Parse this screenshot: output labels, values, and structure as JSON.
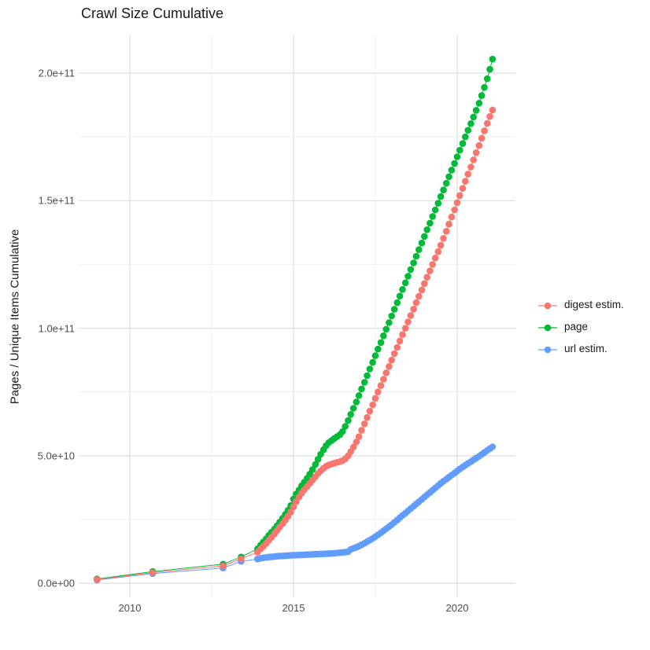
{
  "chart_data": {
    "type": "scatter",
    "title": "Crawl Size Cumulative",
    "xlabel": "",
    "ylabel": "Pages / Unique Items Cumulative",
    "legend_position": "right",
    "grid": true,
    "value_unit": "billions (1e9) of pages / unique items, y axis shown in scientific notation",
    "xlim": [
      2008.44,
      2021.78
    ],
    "ylim_billions": [
      -5.5,
      214.8
    ],
    "x_ticks": [
      {
        "label": "2010",
        "value": 2010
      },
      {
        "label": "2015",
        "value": 2015
      },
      {
        "label": "2020",
        "value": 2020
      }
    ],
    "x_minor_ticks": [
      2012.5,
      2017.5
    ],
    "y_ticks": [
      {
        "label": "0.0e+00",
        "value": 0
      },
      {
        "label": "5.0e+10",
        "value": 50
      },
      {
        "label": "1.0e+11",
        "value": 100
      },
      {
        "label": "1.5e+11",
        "value": 150
      },
      {
        "label": "2.0e+11",
        "value": 200
      }
    ],
    "y_minor_ticks": [
      25,
      75,
      125,
      175
    ],
    "series": [
      {
        "name": "digest estim.",
        "color": "#F8766D",
        "points": [
          [
            2009.0,
            1.5
          ],
          [
            2010.7,
            4.2
          ],
          [
            2012.85,
            6.8
          ],
          [
            2013.4,
            9.6
          ],
          [
            2013.9,
            12.2
          ],
          [
            2014.0,
            13.5
          ],
          [
            2014.08,
            14.5
          ],
          [
            2014.17,
            15.7
          ],
          [
            2014.25,
            16.9
          ],
          [
            2014.33,
            18.1
          ],
          [
            2014.42,
            19.4
          ],
          [
            2014.5,
            20.7
          ],
          [
            2014.58,
            22.0
          ],
          [
            2014.67,
            23.4
          ],
          [
            2014.75,
            24.8
          ],
          [
            2014.83,
            26.3
          ],
          [
            2014.92,
            28.0
          ],
          [
            2015.0,
            30.0
          ],
          [
            2015.08,
            32.0
          ],
          [
            2015.17,
            33.8
          ],
          [
            2015.25,
            35.4
          ],
          [
            2015.33,
            36.7
          ],
          [
            2015.42,
            38.0
          ],
          [
            2015.5,
            39.2
          ],
          [
            2015.58,
            40.5
          ],
          [
            2015.67,
            41.8
          ],
          [
            2015.75,
            43.0
          ],
          [
            2015.83,
            44.1
          ],
          [
            2015.92,
            45.1
          ],
          [
            2016.0,
            45.9
          ],
          [
            2016.08,
            46.4
          ],
          [
            2016.17,
            46.8
          ],
          [
            2016.25,
            47.1
          ],
          [
            2016.33,
            47.4
          ],
          [
            2016.42,
            47.7
          ],
          [
            2016.5,
            48.1
          ],
          [
            2016.58,
            48.8
          ],
          [
            2016.67,
            50.0
          ],
          [
            2016.75,
            51.6
          ],
          [
            2016.83,
            53.4
          ],
          [
            2016.92,
            55.4
          ],
          [
            2017.0,
            57.5
          ],
          [
            2017.08,
            60.0
          ],
          [
            2017.17,
            62.5
          ],
          [
            2017.25,
            65.0
          ],
          [
            2017.33,
            67.5
          ],
          [
            2017.42,
            70.0
          ],
          [
            2017.5,
            72.5
          ],
          [
            2017.58,
            75.0
          ],
          [
            2017.67,
            77.5
          ],
          [
            2017.75,
            80.0
          ],
          [
            2017.83,
            82.5
          ],
          [
            2017.92,
            85.0
          ],
          [
            2018.0,
            87.5
          ],
          [
            2018.08,
            90.0
          ],
          [
            2018.17,
            92.5
          ],
          [
            2018.25,
            95.0
          ],
          [
            2018.33,
            97.5
          ],
          [
            2018.42,
            100.0
          ],
          [
            2018.5,
            102.5
          ],
          [
            2018.58,
            105.0
          ],
          [
            2018.67,
            107.5
          ],
          [
            2018.75,
            110.0
          ],
          [
            2018.83,
            112.5
          ],
          [
            2018.92,
            115.0
          ],
          [
            2019.0,
            117.5
          ],
          [
            2019.08,
            120.0
          ],
          [
            2019.17,
            122.5
          ],
          [
            2019.25,
            125.0
          ],
          [
            2019.33,
            127.5
          ],
          [
            2019.42,
            130.0
          ],
          [
            2019.5,
            132.5
          ],
          [
            2019.58,
            135.2
          ],
          [
            2019.67,
            138.0
          ],
          [
            2019.75,
            140.8
          ],
          [
            2019.83,
            143.6
          ],
          [
            2019.92,
            146.4
          ],
          [
            2020.0,
            149.2
          ],
          [
            2020.08,
            152.0
          ],
          [
            2020.17,
            154.8
          ],
          [
            2020.25,
            157.6
          ],
          [
            2020.33,
            160.4
          ],
          [
            2020.42,
            163.2
          ],
          [
            2020.5,
            166.0
          ],
          [
            2020.58,
            168.8
          ],
          [
            2020.67,
            171.6
          ],
          [
            2020.75,
            174.5
          ],
          [
            2020.83,
            177.4
          ],
          [
            2020.92,
            180.3
          ],
          [
            2021.0,
            183.0
          ],
          [
            2021.08,
            185.5
          ]
        ]
      },
      {
        "name": "page",
        "color": "#00BA38",
        "points": [
          [
            2009.0,
            1.7
          ],
          [
            2010.7,
            4.6
          ],
          [
            2012.85,
            7.5
          ],
          [
            2013.4,
            10.3
          ],
          [
            2013.9,
            13.5
          ],
          [
            2014.0,
            15.0
          ],
          [
            2014.08,
            16.2
          ],
          [
            2014.17,
            17.5
          ],
          [
            2014.25,
            18.8
          ],
          [
            2014.33,
            20.0
          ],
          [
            2014.42,
            21.3
          ],
          [
            2014.5,
            22.6
          ],
          [
            2014.58,
            24.0
          ],
          [
            2014.67,
            25.5
          ],
          [
            2014.75,
            27.0
          ],
          [
            2014.83,
            28.6
          ],
          [
            2014.92,
            30.5
          ],
          [
            2015.0,
            33.0
          ],
          [
            2015.08,
            35.0
          ],
          [
            2015.17,
            36.6
          ],
          [
            2015.25,
            38.2
          ],
          [
            2015.33,
            39.6
          ],
          [
            2015.42,
            41.2
          ],
          [
            2015.5,
            42.8
          ],
          [
            2015.58,
            44.6
          ],
          [
            2015.67,
            46.6
          ],
          [
            2015.75,
            48.6
          ],
          [
            2015.83,
            50.6
          ],
          [
            2015.92,
            52.4
          ],
          [
            2016.0,
            54.0
          ],
          [
            2016.08,
            55.2
          ],
          [
            2016.17,
            56.0
          ],
          [
            2016.25,
            56.8
          ],
          [
            2016.33,
            57.5
          ],
          [
            2016.42,
            58.3
          ],
          [
            2016.5,
            59.5
          ],
          [
            2016.58,
            61.5
          ],
          [
            2016.67,
            63.8
          ],
          [
            2016.75,
            66.2
          ],
          [
            2016.83,
            68.6
          ],
          [
            2016.92,
            71.1
          ],
          [
            2017.0,
            73.6
          ],
          [
            2017.08,
            76.2
          ],
          [
            2017.17,
            78.8
          ],
          [
            2017.25,
            81.4
          ],
          [
            2017.33,
            84.0
          ],
          [
            2017.42,
            86.6
          ],
          [
            2017.5,
            89.2
          ],
          [
            2017.58,
            91.8
          ],
          [
            2017.67,
            94.4
          ],
          [
            2017.75,
            97.0
          ],
          [
            2017.83,
            99.6
          ],
          [
            2017.92,
            102.2
          ],
          [
            2018.0,
            104.8
          ],
          [
            2018.08,
            107.4
          ],
          [
            2018.17,
            110.0
          ],
          [
            2018.25,
            112.6
          ],
          [
            2018.33,
            115.2
          ],
          [
            2018.42,
            117.8
          ],
          [
            2018.5,
            120.4
          ],
          [
            2018.58,
            123.0
          ],
          [
            2018.67,
            125.6
          ],
          [
            2018.75,
            128.2
          ],
          [
            2018.83,
            130.8
          ],
          [
            2018.92,
            133.4
          ],
          [
            2019.0,
            136.0
          ],
          [
            2019.08,
            138.6
          ],
          [
            2019.17,
            141.2
          ],
          [
            2019.25,
            143.8
          ],
          [
            2019.33,
            146.4
          ],
          [
            2019.42,
            149.0
          ],
          [
            2019.5,
            151.6
          ],
          [
            2019.58,
            154.2
          ],
          [
            2019.67,
            156.8
          ],
          [
            2019.75,
            159.4
          ],
          [
            2019.83,
            162.0
          ],
          [
            2019.92,
            164.6
          ],
          [
            2020.0,
            167.2
          ],
          [
            2020.08,
            169.8
          ],
          [
            2020.17,
            172.4
          ],
          [
            2020.25,
            175.0
          ],
          [
            2020.33,
            177.6
          ],
          [
            2020.42,
            180.2
          ],
          [
            2020.5,
            182.8
          ],
          [
            2020.58,
            185.4
          ],
          [
            2020.67,
            188.2
          ],
          [
            2020.75,
            191.2
          ],
          [
            2020.83,
            194.4
          ],
          [
            2020.92,
            197.8
          ],
          [
            2021.0,
            201.5
          ],
          [
            2021.08,
            205.5
          ]
        ]
      },
      {
        "name": "url estim.",
        "color": "#619CFF",
        "points": [
          [
            2009.0,
            1.3
          ],
          [
            2010.7,
            3.8
          ],
          [
            2012.85,
            6.0
          ],
          [
            2013.4,
            8.6
          ],
          [
            2013.9,
            9.5
          ],
          [
            2014.0,
            9.8
          ],
          [
            2014.08,
            10.0
          ],
          [
            2014.17,
            10.15
          ],
          [
            2014.25,
            10.3
          ],
          [
            2014.33,
            10.4
          ],
          [
            2014.42,
            10.5
          ],
          [
            2014.5,
            10.6
          ],
          [
            2014.58,
            10.7
          ],
          [
            2014.67,
            10.75
          ],
          [
            2014.75,
            10.8
          ],
          [
            2014.83,
            10.9
          ],
          [
            2014.92,
            10.95
          ],
          [
            2015.0,
            11.0
          ],
          [
            2015.08,
            11.05
          ],
          [
            2015.17,
            11.1
          ],
          [
            2015.25,
            11.15
          ],
          [
            2015.33,
            11.2
          ],
          [
            2015.42,
            11.25
          ],
          [
            2015.5,
            11.3
          ],
          [
            2015.58,
            11.35
          ],
          [
            2015.67,
            11.4
          ],
          [
            2015.75,
            11.45
          ],
          [
            2015.83,
            11.5
          ],
          [
            2015.92,
            11.55
          ],
          [
            2016.0,
            11.6
          ],
          [
            2016.08,
            11.65
          ],
          [
            2016.17,
            11.7
          ],
          [
            2016.25,
            11.8
          ],
          [
            2016.33,
            11.9
          ],
          [
            2016.42,
            12.0
          ],
          [
            2016.5,
            12.1
          ],
          [
            2016.58,
            12.25
          ],
          [
            2016.67,
            12.4
          ],
          [
            2016.75,
            13.3
          ],
          [
            2016.83,
            13.7
          ],
          [
            2016.92,
            14.1
          ],
          [
            2017.0,
            14.6
          ],
          [
            2017.08,
            15.1
          ],
          [
            2017.17,
            15.7
          ],
          [
            2017.25,
            16.3
          ],
          [
            2017.33,
            16.9
          ],
          [
            2017.42,
            17.6
          ],
          [
            2017.5,
            18.3
          ],
          [
            2017.58,
            19.0
          ],
          [
            2017.67,
            19.8
          ],
          [
            2017.75,
            20.6
          ],
          [
            2017.83,
            21.4
          ],
          [
            2017.92,
            22.2
          ],
          [
            2018.0,
            23.0
          ],
          [
            2018.08,
            23.9
          ],
          [
            2018.17,
            24.8
          ],
          [
            2018.25,
            25.7
          ],
          [
            2018.33,
            26.6
          ],
          [
            2018.42,
            27.5
          ],
          [
            2018.5,
            28.4
          ],
          [
            2018.58,
            29.3
          ],
          [
            2018.67,
            30.2
          ],
          [
            2018.75,
            31.1
          ],
          [
            2018.83,
            32.0
          ],
          [
            2018.92,
            32.9
          ],
          [
            2019.0,
            33.8
          ],
          [
            2019.08,
            34.7
          ],
          [
            2019.17,
            35.6
          ],
          [
            2019.25,
            36.5
          ],
          [
            2019.33,
            37.4
          ],
          [
            2019.42,
            38.3
          ],
          [
            2019.5,
            39.2
          ],
          [
            2019.58,
            40.0
          ],
          [
            2019.67,
            40.8
          ],
          [
            2019.75,
            41.6
          ],
          [
            2019.83,
            42.4
          ],
          [
            2019.92,
            43.2
          ],
          [
            2020.0,
            44.0
          ],
          [
            2020.08,
            44.8
          ],
          [
            2020.17,
            45.6
          ],
          [
            2020.25,
            46.3
          ],
          [
            2020.33,
            47.0
          ],
          [
            2020.42,
            47.7
          ],
          [
            2020.5,
            48.4
          ],
          [
            2020.58,
            49.1
          ],
          [
            2020.67,
            49.8
          ],
          [
            2020.75,
            50.5
          ],
          [
            2020.83,
            51.3
          ],
          [
            2020.92,
            52.1
          ],
          [
            2021.0,
            52.8
          ],
          [
            2021.08,
            53.5
          ]
        ]
      }
    ],
    "draw_order": [
      2,
      1,
      0
    ]
  },
  "colors": {
    "major_grid": "#DEDEDE",
    "minor_grid": "#ECECEC",
    "tick_text": "#4D4D4D",
    "title_text": "#1A1A1A",
    "background": "#FFFFFF"
  }
}
